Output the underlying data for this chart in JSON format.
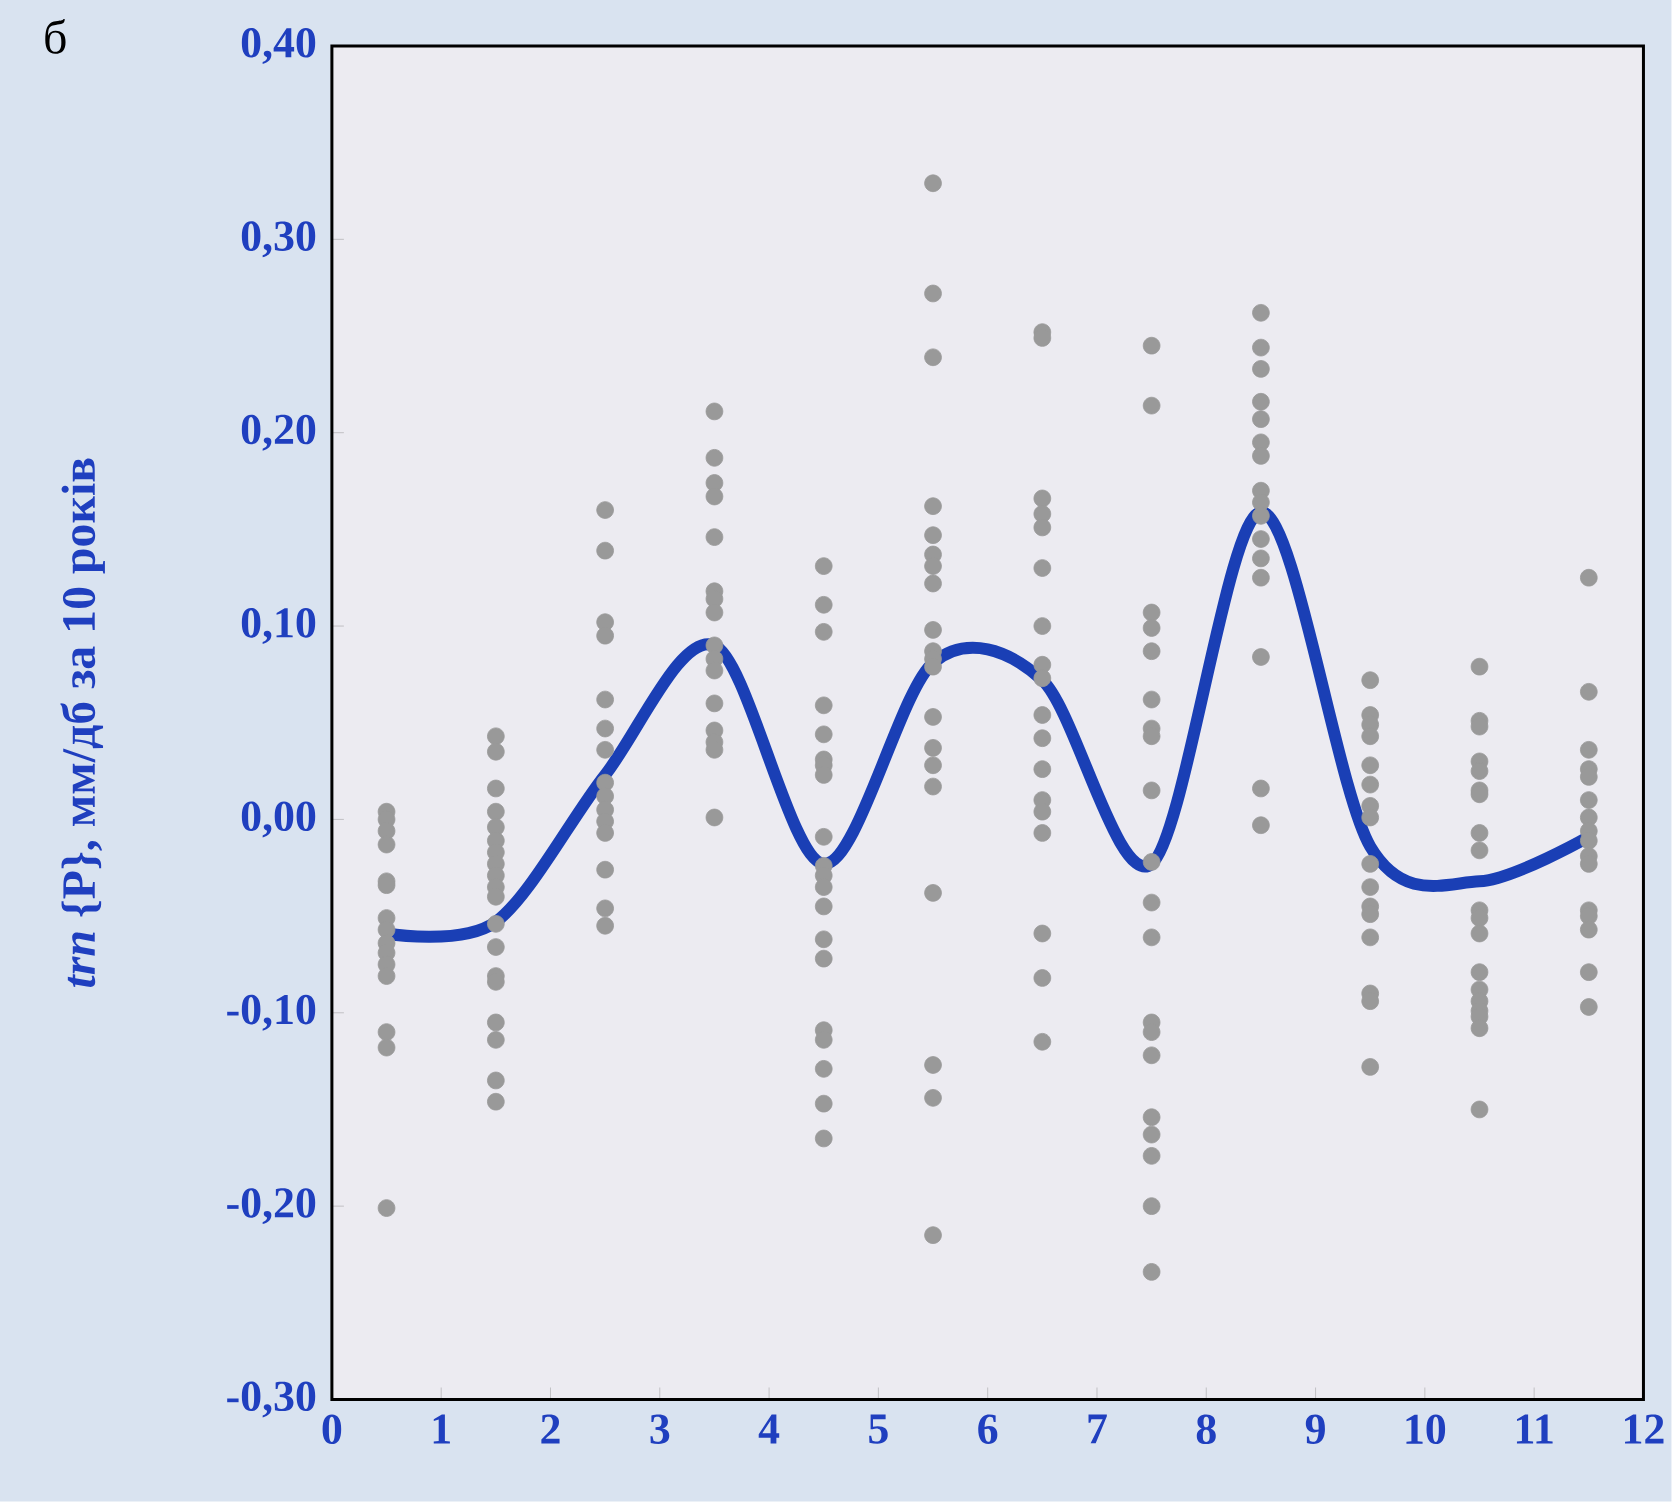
{
  "chart_data": {
    "type": "scatter",
    "annotations": [
      "б"
    ],
    "ylabel": "*trn* {P}, мм/дб за 10 років",
    "xlim": [
      0,
      12
    ],
    "xticks": [
      0,
      1,
      2,
      3,
      4,
      5,
      6,
      7,
      8,
      9,
      10,
      11,
      12
    ],
    "ylim": [
      -0.3,
      0.4
    ],
    "yticks": [
      {
        "value": -0.3,
        "label": "-0,30"
      },
      {
        "value": -0.2,
        "label": "-0,20"
      },
      {
        "value": -0.1,
        "label": "-0,10"
      },
      {
        "value": 0,
        "label": "0,00"
      },
      {
        "value": 0.1,
        "label": "0,10"
      },
      {
        "value": 0.2,
        "label": "0,20"
      },
      {
        "value": 0.3,
        "label": "0,30"
      },
      {
        "value": 0.4,
        "label": "0,40"
      }
    ],
    "grid": false,
    "series": [
      {
        "marker": "circle",
        "color": "#999999",
        "x": [
          0.5,
          0.5,
          0.5,
          0.5,
          0.5,
          0.5,
          0.5,
          0.5,
          0.5,
          0.5,
          0.5,
          0.5,
          0.5,
          0.5,
          0.5,
          1.5,
          1.5,
          1.5,
          1.5,
          1.5,
          1.5,
          1.5,
          1.5,
          1.5,
          1.5,
          1.5,
          1.5,
          1.5,
          1.5,
          1.5,
          1.5,
          1.5,
          1.5,
          1.5,
          2.5,
          2.5,
          2.5,
          2.5,
          2.5,
          2.5,
          2.5,
          2.5,
          2.5,
          2.5,
          2.5,
          2.5,
          2.5,
          2.5,
          2.5,
          3.5,
          3.5,
          3.5,
          3.5,
          3.5,
          3.5,
          3.5,
          3.5,
          3.5,
          3.5,
          3.5,
          3.5,
          3.5,
          3.5,
          3.5,
          3.5,
          4.5,
          4.5,
          4.5,
          4.5,
          4.5,
          4.5,
          4.5,
          4.5,
          4.5,
          4.5,
          4.5,
          4.5,
          4.5,
          4.5,
          4.5,
          4.5,
          4.5,
          4.5,
          4.5,
          4.5,
          5.5,
          5.5,
          5.5,
          5.5,
          5.5,
          5.5,
          5.5,
          5.5,
          5.5,
          5.5,
          5.5,
          5.5,
          5.5,
          5.5,
          5.5,
          5.5,
          5.5,
          5.5,
          5.5,
          5.5,
          6.5,
          6.5,
          6.5,
          6.5,
          6.5,
          6.5,
          6.5,
          6.5,
          6.5,
          6.5,
          6.5,
          6.5,
          6.5,
          6.5,
          6.5,
          6.5,
          6.5,
          6.5,
          7.5,
          7.5,
          7.5,
          7.5,
          7.5,
          7.5,
          7.5,
          7.5,
          7.5,
          7.5,
          7.5,
          7.5,
          7.5,
          7.5,
          7.5,
          7.5,
          7.5,
          7.5,
          7.5,
          7.5,
          8.5,
          8.5,
          8.5,
          8.5,
          8.5,
          8.5,
          8.5,
          8.5,
          8.5,
          8.5,
          8.5,
          8.5,
          8.5,
          8.5,
          8.5,
          8.5,
          9.5,
          9.5,
          9.5,
          9.5,
          9.5,
          9.5,
          9.5,
          9.5,
          9.5,
          9.5,
          9.5,
          9.5,
          9.5,
          9.5,
          9.5,
          9.5,
          10.5,
          10.5,
          10.5,
          10.5,
          10.5,
          10.5,
          10.5,
          10.5,
          10.5,
          10.5,
          10.5,
          10.5,
          10.5,
          10.5,
          10.5,
          10.5,
          10.5,
          10.5,
          10.5,
          11.5,
          11.5,
          11.5,
          11.5,
          11.5,
          11.5,
          11.5,
          11.5,
          11.5,
          11.5,
          11.5,
          11.5,
          11.5,
          11.5,
          11.5,
          11.5
        ],
        "values": [
          0.004,
          0.0,
          -0.006,
          -0.013,
          -0.032,
          -0.034,
          -0.051,
          -0.057,
          -0.064,
          -0.069,
          -0.075,
          -0.081,
          -0.11,
          -0.118,
          -0.201,
          0.043,
          0.035,
          0.016,
          0.004,
          -0.004,
          -0.011,
          -0.017,
          -0.023,
          -0.029,
          -0.035,
          -0.04,
          -0.054,
          -0.066,
          -0.081,
          -0.084,
          -0.105,
          -0.114,
          -0.135,
          -0.146,
          0.16,
          0.139,
          0.102,
          0.095,
          0.062,
          0.047,
          0.036,
          0.019,
          0.012,
          0.005,
          -0.001,
          -0.007,
          -0.026,
          -0.046,
          -0.055,
          0.211,
          0.187,
          0.174,
          0.167,
          0.146,
          0.118,
          0.114,
          0.107,
          0.09,
          0.083,
          0.077,
          0.06,
          0.046,
          0.04,
          0.036,
          0.001,
          0.131,
          0.111,
          0.097,
          0.059,
          0.044,
          0.031,
          0.028,
          0.023,
          -0.009,
          -0.024,
          -0.029,
          -0.035,
          -0.045,
          -0.062,
          -0.072,
          -0.109,
          -0.114,
          -0.129,
          -0.147,
          -0.165,
          0.329,
          0.272,
          0.239,
          0.162,
          0.147,
          0.137,
          0.131,
          0.122,
          0.098,
          0.087,
          0.083,
          0.079,
          0.053,
          0.037,
          0.028,
          0.017,
          -0.038,
          -0.127,
          -0.144,
          -0.215,
          0.252,
          0.249,
          0.166,
          0.158,
          0.151,
          0.13,
          0.1,
          0.08,
          0.073,
          0.054,
          0.042,
          0.026,
          0.01,
          0.004,
          -0.007,
          -0.059,
          -0.082,
          -0.115,
          0.245,
          0.214,
          0.107,
          0.099,
          0.087,
          0.062,
          0.047,
          0.043,
          0.015,
          -0.022,
          -0.043,
          -0.061,
          -0.105,
          -0.11,
          -0.122,
          -0.154,
          -0.163,
          -0.174,
          -0.2,
          -0.234,
          0.262,
          0.244,
          0.233,
          0.216,
          0.207,
          0.195,
          0.188,
          0.17,
          0.164,
          0.157,
          0.145,
          0.135,
          0.125,
          0.084,
          0.016,
          -0.003,
          0.072,
          0.054,
          0.049,
          0.043,
          0.028,
          0.018,
          0.007,
          0.001,
          -0.023,
          -0.035,
          -0.045,
          -0.049,
          -0.061,
          -0.09,
          -0.094,
          -0.128,
          0.079,
          0.051,
          0.048,
          0.03,
          0.025,
          0.015,
          0.013,
          -0.007,
          -0.016,
          -0.047,
          -0.051,
          -0.059,
          -0.079,
          -0.088,
          -0.094,
          -0.099,
          -0.102,
          -0.108,
          -0.15,
          0.125,
          0.066,
          0.036,
          0.026,
          0.022,
          0.01,
          0.001,
          -0.006,
          -0.011,
          -0.019,
          -0.023,
          -0.047,
          -0.05,
          -0.057,
          -0.079,
          -0.097
        ]
      },
      {
        "type": "line",
        "marker": "none",
        "line_style": "solid",
        "color": "#1a3fb5",
        "x": [
          0.5,
          1.5,
          2.5,
          3.5,
          4.5,
          5.5,
          6.5,
          7.5,
          8.5,
          9.5,
          10.5,
          11.5
        ],
        "values": [
          -0.059,
          -0.053,
          0.023,
          0.09,
          -0.023,
          0.081,
          0.072,
          -0.023,
          0.159,
          -0.014,
          -0.032,
          -0.009
        ]
      }
    ]
  }
}
